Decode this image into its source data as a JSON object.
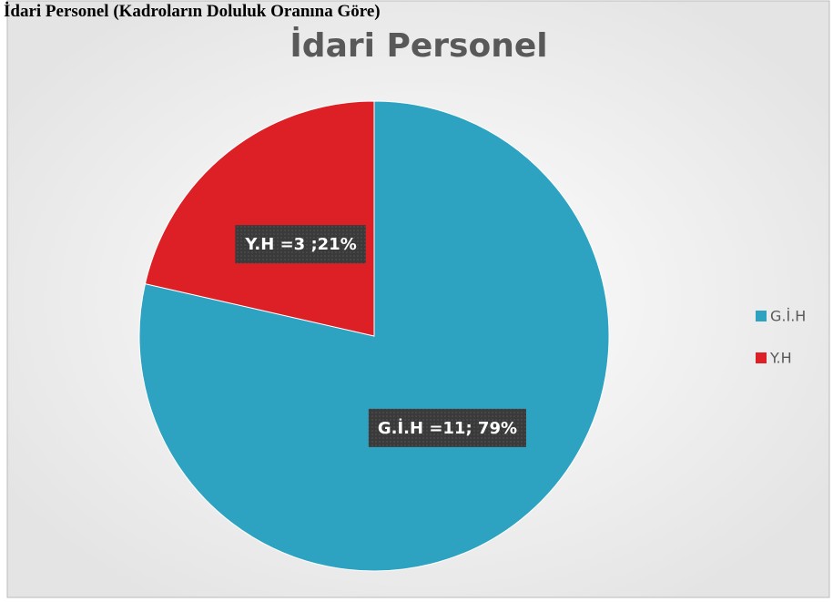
{
  "heading": "İdari Personel (Kadroların Doluluk Oranına Göre)",
  "chart_data": {
    "type": "pie",
    "title": "İdari Personel",
    "categories": [
      "G.İ.H",
      "Y.H"
    ],
    "values": [
      11,
      3
    ],
    "value_labels": [
      "G.İ.H =11; 79%",
      "Y.H =3 ;21%"
    ],
    "colors": [
      "#2ea3c1",
      "#dd1f26"
    ],
    "legend": "right"
  }
}
